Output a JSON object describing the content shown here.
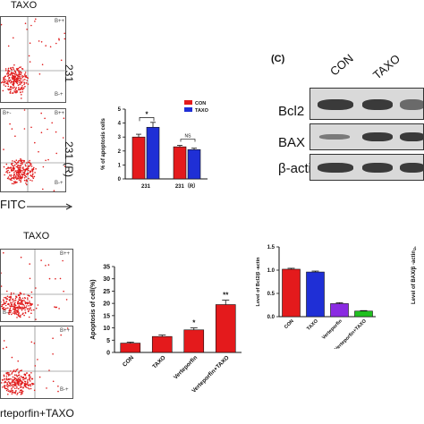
{
  "panel_top": {
    "title": "TAXO",
    "row_labels": [
      "231",
      "231 (R)"
    ],
    "xaxis": "FITC",
    "quadrant_labels": [
      "B+-",
      "B++",
      "B--",
      "B-+"
    ]
  },
  "panel_bottom": {
    "title": "TAXO",
    "caption": "rteporfin+TAXO",
    "quadrant_labels": [
      "B+-",
      "B++",
      "B--",
      "B-+"
    ]
  },
  "panel_c": {
    "label": "(C)",
    "lanes": [
      "CON",
      "TAXO"
    ],
    "proteins": [
      "Bcl2",
      "BAX",
      "β-actin"
    ]
  },
  "right_edge_axis": {
    "ylabel": "Level of BAX/β -actin",
    "tick": "4"
  },
  "chart_data": [
    {
      "type": "bar",
      "id": "apoptosis-231",
      "categories": [
        "231",
        "231（R）"
      ],
      "series": [
        {
          "name": "CON",
          "color": "#e41a1c",
          "values": [
            3.0,
            2.3
          ],
          "errors": [
            0.2,
            0.1
          ]
        },
        {
          "name": "TAXO",
          "color": "#1f2fd6",
          "values": [
            3.7,
            2.1
          ],
          "errors": [
            0.35,
            0.1
          ]
        }
      ],
      "annotations": [
        "*",
        "NS"
      ],
      "ylabel": "% of apoptosis cells",
      "yticks": [
        0,
        1,
        2,
        3,
        4,
        5
      ],
      "ylim": [
        0,
        5
      ],
      "legend": "top-right"
    },
    {
      "type": "bar",
      "id": "apoptosis-verteporfin",
      "categories": [
        "CON",
        "TAXO",
        "Verteporfin",
        "Verteporfin+TAXO"
      ],
      "values": [
        3.8,
        6.5,
        9.2,
        19.5
      ],
      "errors": [
        0.4,
        0.6,
        0.8,
        1.8
      ],
      "color": "#e41a1c",
      "annotations": [
        "",
        "",
        "*",
        "**"
      ],
      "ylabel": "Apoptosis of cell(%)",
      "yticks": [
        0,
        5,
        10,
        15,
        20,
        25,
        30,
        35
      ],
      "ylim": [
        0,
        35
      ]
    },
    {
      "type": "bar",
      "id": "bcl2-level",
      "categories": [
        "CON",
        "TAXO",
        "Verteporfin",
        "Verteporfin+TAXO"
      ],
      "values": [
        1.02,
        0.96,
        0.28,
        0.12
      ],
      "errors": [
        0.02,
        0.02,
        0.02,
        0.01
      ],
      "colors": [
        "#e41a1c",
        "#1f2fd6",
        "#8a2be2",
        "#20c020"
      ],
      "ylabel": "Level of Bcl2/β -actin",
      "yticks": [
        0.0,
        0.5,
        1.0,
        1.5
      ],
      "ylim": [
        0,
        1.5
      ]
    }
  ]
}
